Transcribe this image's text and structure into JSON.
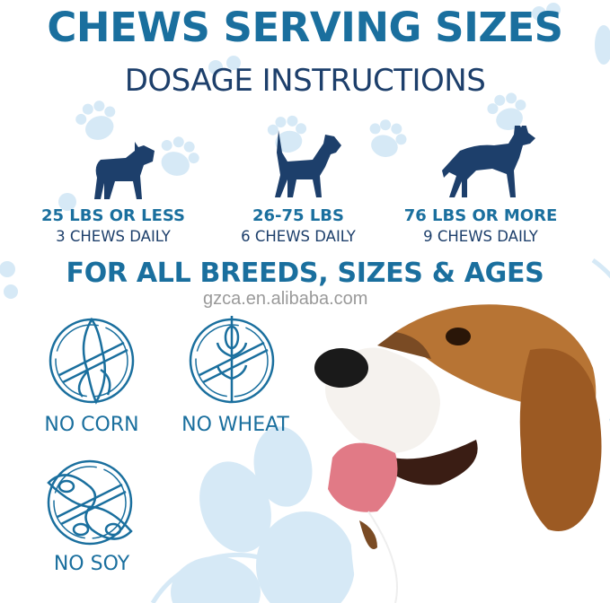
{
  "header": {
    "title": "CHEWS SERVING SIZES",
    "subtitle": "DOSAGE INSTRUCTIONS"
  },
  "dosages": [
    {
      "weight": "25 LBS OR LESS",
      "dose": "3 CHEWS DAILY",
      "icon": "small-dog-silhouette-icon"
    },
    {
      "weight": "26-75 LBS",
      "dose": "6 CHEWS DAILY",
      "icon": "medium-dog-silhouette-icon"
    },
    {
      "weight": "76 LBS OR MORE",
      "dose": "9 CHEWS DAILY",
      "icon": "large-dog-silhouette-icon"
    }
  ],
  "breeds_heading": "FOR ALL BREEDS, SIZES & AGES",
  "watermark": "gzca.en.alibaba.com",
  "free_from": [
    {
      "label": "NO CORN",
      "icon": "no-corn-icon"
    },
    {
      "label": "NO WHEAT",
      "icon": "no-wheat-icon"
    },
    {
      "label": "NO SOY",
      "icon": "no-soy-icon"
    }
  ],
  "colors": {
    "accent": "#1a6f9e",
    "navy": "#1d3f6b",
    "paw": "#d6e9f6"
  }
}
